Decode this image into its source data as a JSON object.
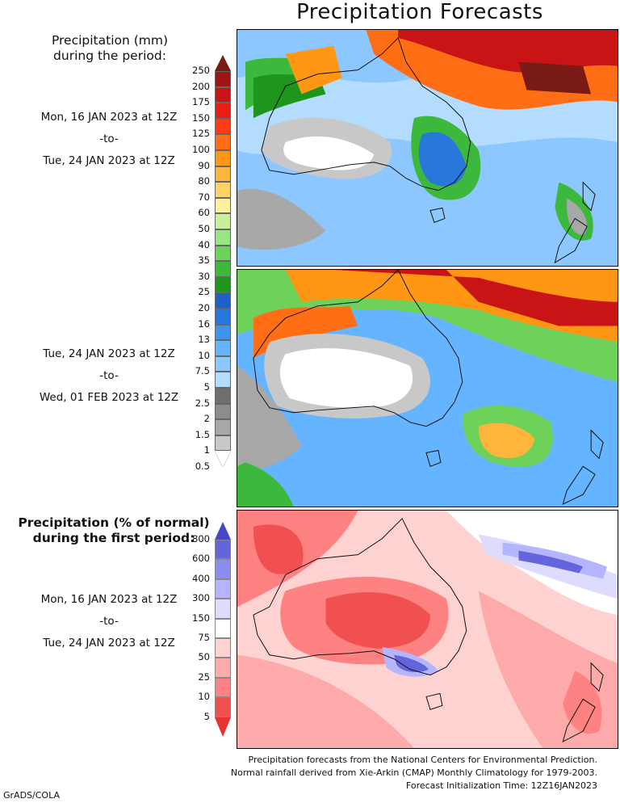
{
  "title": "Precipitation Forecasts",
  "legend_mm": {
    "title_line1": "Precipitation (mm)",
    "title_line2": "during the period:",
    "levels": [
      "250",
      "200",
      "175",
      "150",
      "125",
      "100",
      "90",
      "80",
      "70",
      "60",
      "50",
      "40",
      "35",
      "30",
      "25",
      "20",
      "16",
      "13",
      "10",
      "7.5",
      "5",
      "2.5",
      "2",
      "1.5",
      "1",
      "0.5"
    ],
    "colors": [
      "#7a1a14",
      "#a01414",
      "#c81414",
      "#e81e14",
      "#ff3c14",
      "#ff6e14",
      "#ff9614",
      "#ffb43c",
      "#ffd264",
      "#fff0a0",
      "#c8f09b",
      "#96e682",
      "#6ed25a",
      "#3cb93c",
      "#1e961e",
      "#1e5fc8",
      "#2878dc",
      "#3c96f0",
      "#64b4ff",
      "#8cc8ff",
      "#b4dcff",
      "#6e6e6e",
      "#8c8c8c",
      "#a8a8a8",
      "#c8c8c8",
      "#ffffff"
    ]
  },
  "period1": {
    "start": "Mon, 16 JAN 2023 at 12Z",
    "sep": "-to-",
    "end": "Tue, 24 JAN 2023 at 12Z"
  },
  "period2": {
    "start": "Tue, 24 JAN 2023 at 12Z",
    "sep": "-to-",
    "end": "Wed, 01 FEB 2023 at 12Z"
  },
  "legend_pct": {
    "title_line1": "Precipitation (% of normal)",
    "title_line2": "during the first period:",
    "levels": [
      "800",
      "600",
      "400",
      "300",
      "150",
      "75",
      "50",
      "25",
      "10",
      "5"
    ],
    "colors": [
      "#4646c8",
      "#6464dc",
      "#8c8cf0",
      "#b4b4ff",
      "#dcdcff",
      "#ffffff",
      "#ffd2d2",
      "#ffaaaa",
      "#ff8282",
      "#f05050",
      "#e83232"
    ]
  },
  "period3": {
    "start": "Mon, 16 JAN 2023 at 12Z",
    "sep": "-to-",
    "end": "Tue, 24 JAN 2023 at 12Z"
  },
  "footer": {
    "line1": "Precipitation forecasts from the National Centers for Environmental Prediction.",
    "line2": "Normal rainfall derived from Xie-Arkin (CMAP) Monthly Climatology for 1979-2003.",
    "line3": "Forecast Initialization Time: 12Z16JAN2023"
  },
  "credit": "GrADS/COLA"
}
